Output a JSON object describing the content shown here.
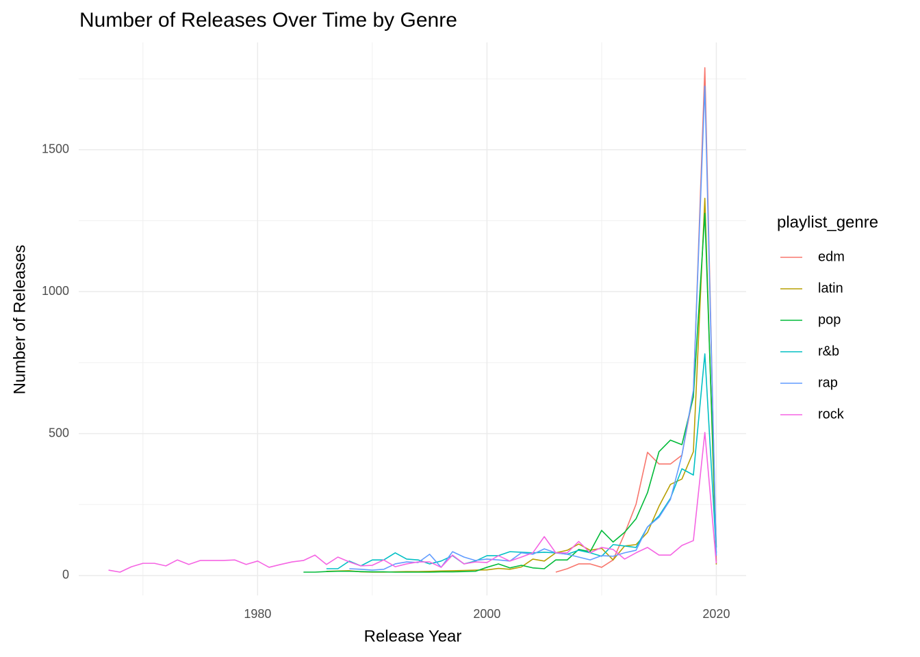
{
  "chart_data": {
    "type": "line",
    "title": "Number of Releases Over Time by Genre",
    "x_label": "Release Year",
    "y_label": "Number of Releases",
    "legend_title": "playlist_genre",
    "legend": "right",
    "grid": true,
    "xlim": [
      1964.4,
      2022.6
    ],
    "xticks": [
      1980,
      2000,
      2020
    ],
    "x_minor_ticks": [
      1970,
      1990,
      2010
    ],
    "ylim": [
      -70,
      1878
    ],
    "yticks": [
      0,
      500,
      1000,
      1500
    ],
    "y_minor_ticks": [
      250,
      750,
      1250,
      1750
    ],
    "x": [
      1967,
      1968,
      1969,
      1970,
      1971,
      1972,
      1973,
      1974,
      1975,
      1976,
      1977,
      1978,
      1979,
      1980,
      1981,
      1982,
      1983,
      1984,
      1985,
      1986,
      1987,
      1988,
      1989,
      1990,
      1991,
      1992,
      1993,
      1994,
      1995,
      1996,
      1997,
      1998,
      1999,
      2000,
      2001,
      2002,
      2003,
      2004,
      2005,
      2006,
      2007,
      2008,
      2009,
      2010,
      2011,
      2012,
      2013,
      2014,
      2015,
      2016,
      2017,
      2018,
      2019,
      2020
    ],
    "series": [
      {
        "name": "edm",
        "color": "#F8766D",
        "values": [
          null,
          null,
          null,
          null,
          null,
          null,
          null,
          null,
          null,
          null,
          null,
          null,
          null,
          null,
          null,
          null,
          null,
          null,
          null,
          null,
          null,
          null,
          null,
          null,
          null,
          null,
          null,
          null,
          null,
          null,
          null,
          null,
          null,
          null,
          null,
          null,
          null,
          null,
          null,
          12,
          24,
          41,
          41,
          29,
          55,
          147,
          251,
          434,
          393,
          393,
          424,
          641,
          1789,
          51
        ]
      },
      {
        "name": "latin",
        "color": "#B79F00",
        "values": [
          null,
          null,
          null,
          null,
          null,
          null,
          null,
          null,
          null,
          null,
          null,
          null,
          null,
          null,
          null,
          null,
          null,
          null,
          null,
          15,
          16,
          17,
          13,
          12,
          12,
          13,
          14,
          14,
          15,
          16,
          17,
          18,
          19,
          20,
          25,
          22,
          30,
          58,
          51,
          80,
          89,
          111,
          89,
          96,
          55,
          104,
          109,
          152,
          244,
          321,
          340,
          436,
          1329,
          39
        ]
      },
      {
        "name": "pop",
        "color": "#00BA38",
        "values": [
          null,
          null,
          null,
          null,
          null,
          null,
          null,
          null,
          null,
          null,
          null,
          null,
          null,
          null,
          null,
          null,
          null,
          12,
          12,
          14,
          15,
          15,
          14,
          13,
          13,
          12,
          12,
          12,
          12,
          13,
          13,
          14,
          15,
          29,
          41,
          27,
          36,
          27,
          24,
          55,
          55,
          92,
          84,
          159,
          118,
          152,
          200,
          292,
          436,
          477,
          461,
          629,
          1276,
          99
        ]
      },
      {
        "name": "r&b",
        "color": "#00BFC4",
        "values": [
          null,
          null,
          null,
          null,
          null,
          null,
          null,
          null,
          null,
          null,
          null,
          null,
          null,
          null,
          null,
          null,
          null,
          null,
          null,
          24,
          24,
          51,
          34,
          55,
          55,
          80,
          58,
          55,
          41,
          51,
          70,
          41,
          51,
          70,
          70,
          84,
          82,
          80,
          82,
          80,
          75,
          89,
          80,
          68,
          109,
          104,
          99,
          171,
          210,
          272,
          376,
          354,
          781,
          80
        ]
      },
      {
        "name": "rap",
        "color": "#619CFF",
        "values": [
          null,
          null,
          null,
          null,
          null,
          null,
          null,
          null,
          null,
          null,
          null,
          null,
          null,
          null,
          null,
          null,
          null,
          null,
          null,
          null,
          null,
          24,
          22,
          19,
          22,
          41,
          48,
          46,
          75,
          29,
          84,
          65,
          53,
          58,
          55,
          51,
          80,
          75,
          94,
          80,
          75,
          65,
          55,
          70,
          68,
          80,
          89,
          171,
          205,
          268,
          424,
          653,
          1724,
          70
        ]
      },
      {
        "name": "rock",
        "color": "#F564E3",
        "values": [
          19,
          12,
          31,
          43,
          43,
          34,
          55,
          39,
          53,
          53,
          53,
          55,
          39,
          51,
          29,
          39,
          48,
          53,
          72,
          39,
          65,
          48,
          34,
          36,
          55,
          31,
          41,
          48,
          48,
          29,
          72,
          41,
          48,
          46,
          70,
          51,
          65,
          80,
          137,
          80,
          80,
          120,
          80,
          99,
          92,
          58,
          80,
          99,
          72,
          72,
          106,
          123,
          504,
          43
        ]
      }
    ]
  }
}
